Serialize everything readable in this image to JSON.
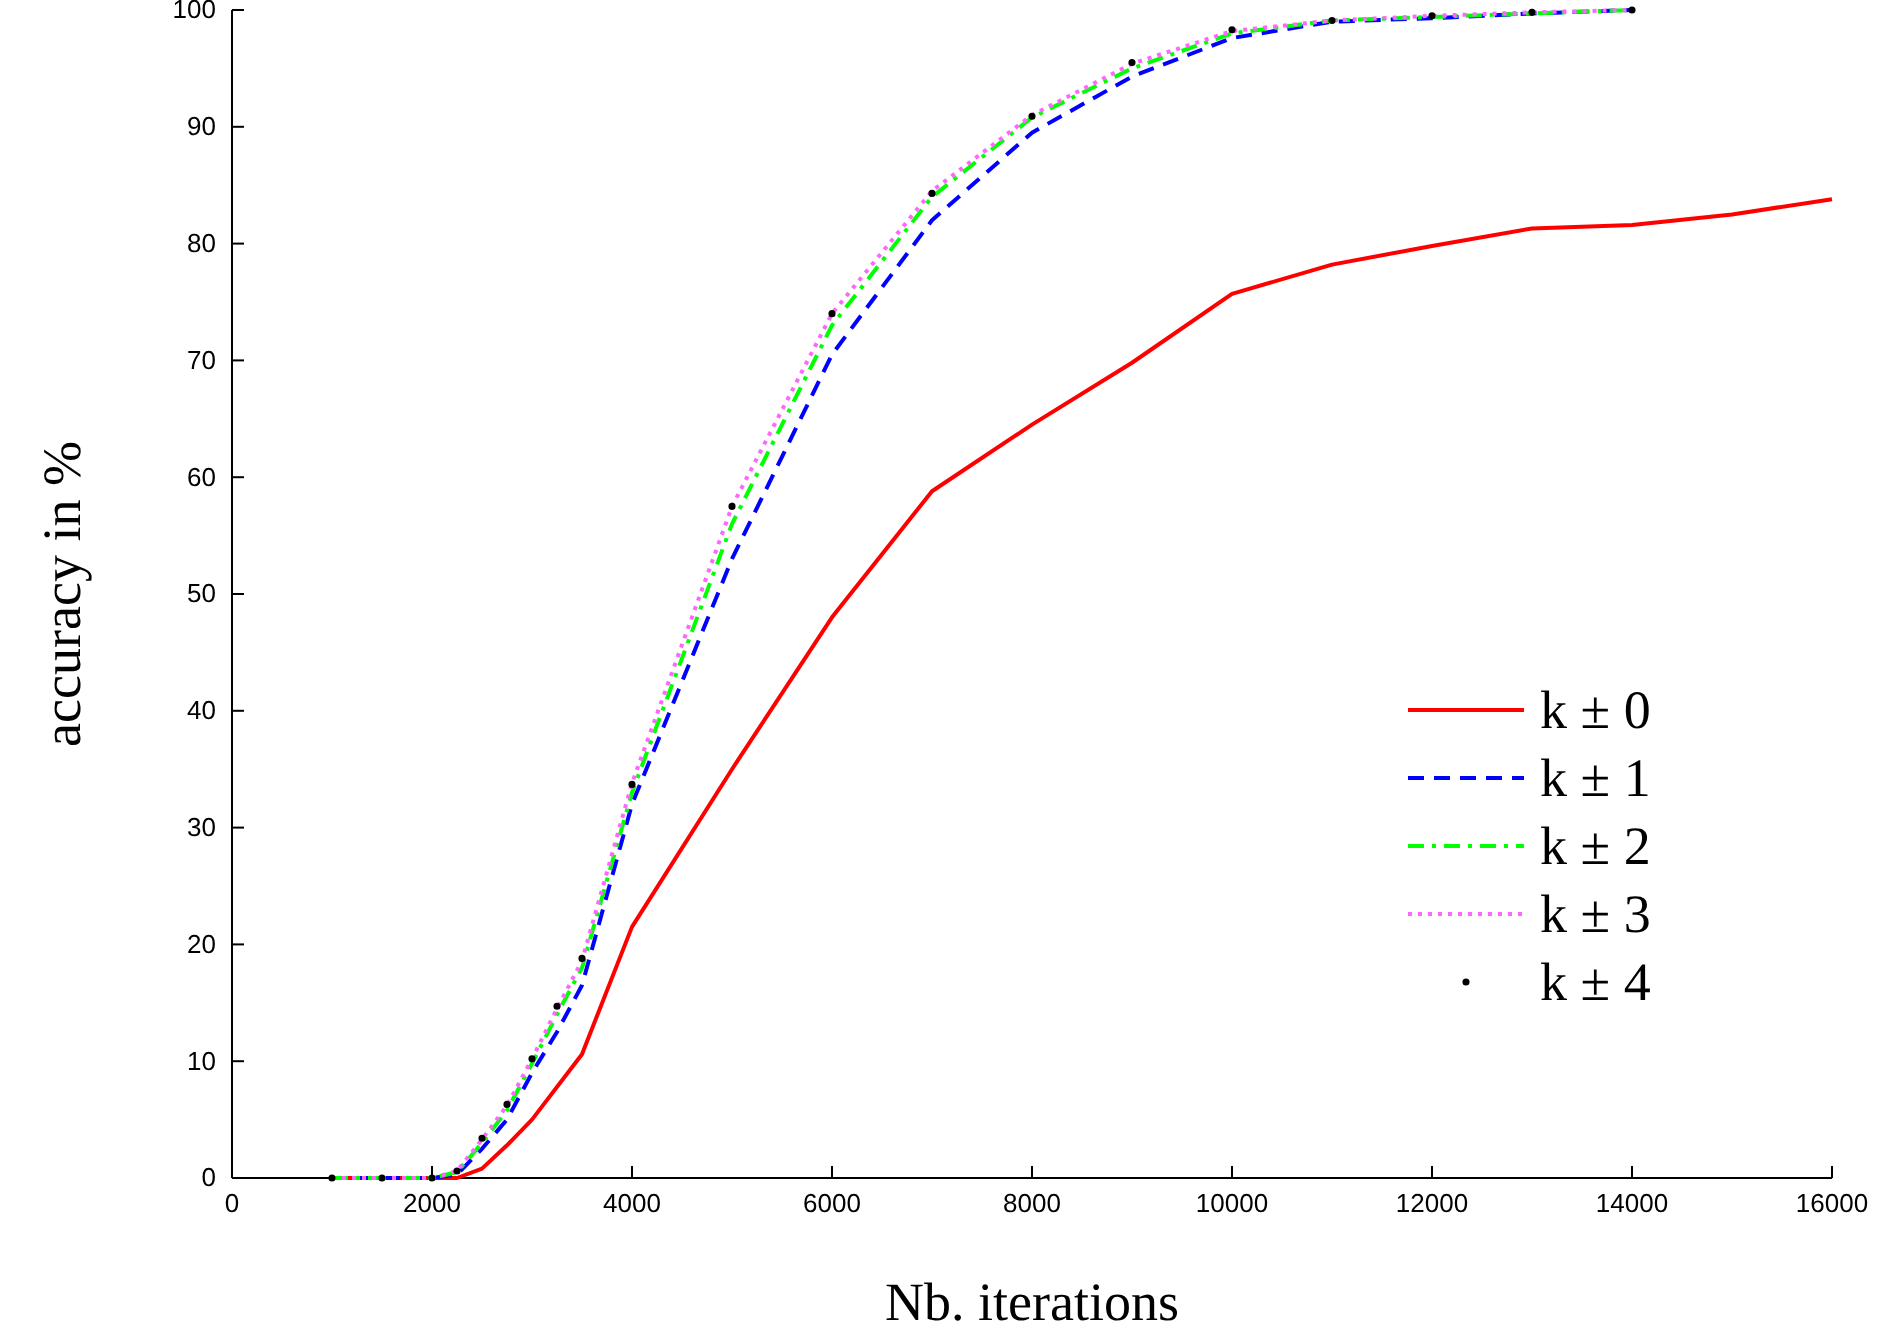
{
  "chart_data": {
    "type": "line",
    "xlabel": "Nb. iterations",
    "ylabel": "accuracy in %",
    "xlim": [
      0,
      16000
    ],
    "ylim": [
      0,
      100
    ],
    "xticks": [
      0,
      2000,
      4000,
      6000,
      8000,
      10000,
      12000,
      14000,
      16000
    ],
    "yticks": [
      0,
      10,
      20,
      30,
      40,
      50,
      60,
      70,
      80,
      90,
      100
    ],
    "legend": "right",
    "grid": false,
    "series": [
      {
        "name": "k ± 0",
        "color": "#ff0000",
        "line_style": "solid",
        "x": [
          1000,
          1500,
          2000,
          2250,
          2500,
          2750,
          3000,
          3500,
          4000,
          5000,
          6000,
          7000,
          8000,
          9000,
          10000,
          11000,
          12000,
          13000,
          14000,
          15000,
          16000
        ],
        "values": [
          0,
          0,
          0,
          0,
          0.8,
          2.8,
          5,
          10.6,
          21.5,
          35,
          48,
          58.8,
          64.5,
          69.8,
          75.7,
          78.2,
          79.8,
          81.3,
          81.6,
          82.5,
          83.8
        ]
      },
      {
        "name": "k ± 1",
        "color": "#0000ff",
        "line_style": "dashed",
        "x": [
          1000,
          1500,
          2000,
          2250,
          2500,
          2750,
          3000,
          3250,
          3500,
          4000,
          5000,
          6000,
          7000,
          8000,
          9000,
          10000,
          11000,
          12000,
          13000,
          14000
        ],
        "values": [
          0,
          0,
          0,
          0.3,
          2.5,
          5,
          9,
          12.5,
          16.5,
          32,
          53,
          70.5,
          82,
          89.5,
          94.3,
          97.6,
          99,
          99.3,
          99.7,
          100
        ]
      },
      {
        "name": "k ± 2",
        "color": "#00ff00",
        "line_style": "dashdot",
        "x": [
          1000,
          1500,
          2000,
          2250,
          2500,
          2750,
          3000,
          3250,
          3500,
          4000,
          5000,
          6000,
          7000,
          8000,
          9000,
          10000,
          11000,
          12000,
          13000,
          14000
        ],
        "values": [
          0,
          0,
          0,
          0.5,
          3,
          5.8,
          9.8,
          14,
          18,
          33,
          56,
          73,
          84,
          90.8,
          95,
          98,
          99.1,
          99.4,
          99.7,
          100
        ]
      },
      {
        "name": "k ± 3",
        "color": "#ff66ff",
        "line_style": "dotted",
        "x": [
          1000,
          1500,
          2000,
          2250,
          2500,
          2750,
          3000,
          3250,
          3500,
          4000,
          5000,
          6000,
          7000,
          8000,
          9000,
          10000,
          11000,
          12000,
          13000,
          14000
        ],
        "values": [
          0,
          0,
          0,
          0.6,
          3.3,
          6.2,
          10.2,
          14.5,
          18.6,
          33.8,
          57.5,
          74,
          84.5,
          91,
          95.4,
          98.2,
          99.1,
          99.5,
          99.8,
          100
        ]
      },
      {
        "name": "k ± 4",
        "type": "scatter",
        "color": "#000000",
        "marker": "circle",
        "x": [
          1000,
          1500,
          2000,
          2250,
          2500,
          2750,
          3000,
          3250,
          3500,
          4000,
          5000,
          6000,
          7000,
          8000,
          9000,
          10000,
          11000,
          12000,
          13000,
          14000
        ],
        "values": [
          0,
          0,
          0,
          0.6,
          3.4,
          6.3,
          10.2,
          14.7,
          18.8,
          33.7,
          57.5,
          74,
          84.3,
          90.9,
          95.5,
          98.3,
          99.1,
          99.5,
          99.8,
          100
        ]
      }
    ]
  }
}
